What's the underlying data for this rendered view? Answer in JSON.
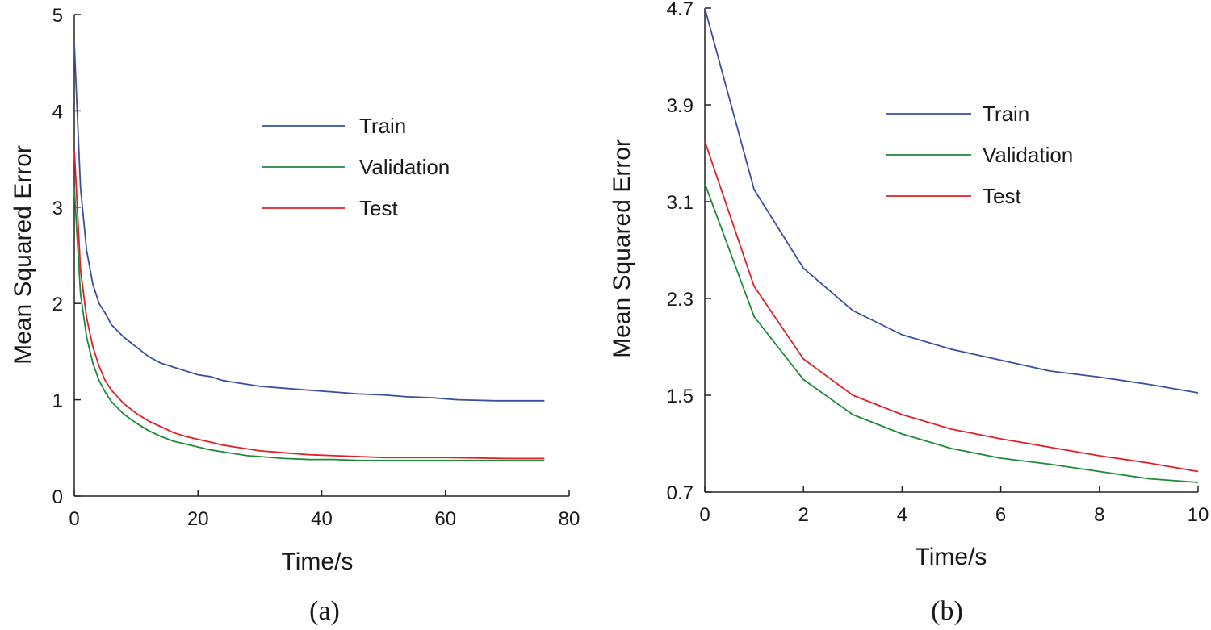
{
  "chart_data": [
    {
      "type": "line",
      "caption": "(a)",
      "xlabel": "Time/s",
      "ylabel": "Mean Squared Error",
      "xlim": [
        0,
        80
      ],
      "ylim": [
        0,
        5
      ],
      "xticks": [
        0,
        20,
        40,
        60,
        80
      ],
      "yticks": [
        0,
        1,
        2,
        3,
        4,
        5
      ],
      "xtick_labels": [
        "0",
        "20",
        "40",
        "60",
        "80"
      ],
      "ytick_labels": [
        "0",
        "1",
        "2",
        "3",
        "4",
        "5"
      ],
      "grid": false,
      "legend_position": "top-right",
      "series": [
        {
          "name": "Train",
          "color": "#3b4fa0",
          "points": [
            [
              0,
              4.7
            ],
            [
              1,
              3.2
            ],
            [
              2,
              2.55
            ],
            [
              3,
              2.2
            ],
            [
              4,
              2.0
            ],
            [
              5,
              1.9
            ],
            [
              6,
              1.78
            ],
            [
              8,
              1.65
            ],
            [
              10,
              1.55
            ],
            [
              12,
              1.45
            ],
            [
              14,
              1.38
            ],
            [
              16,
              1.34
            ],
            [
              18,
              1.3
            ],
            [
              20,
              1.26
            ],
            [
              22,
              1.24
            ],
            [
              24,
              1.2
            ],
            [
              26,
              1.18
            ],
            [
              28,
              1.16
            ],
            [
              30,
              1.14
            ],
            [
              34,
              1.12
            ],
            [
              38,
              1.1
            ],
            [
              42,
              1.08
            ],
            [
              46,
              1.06
            ],
            [
              50,
              1.05
            ],
            [
              54,
              1.03
            ],
            [
              58,
              1.02
            ],
            [
              62,
              1.0
            ],
            [
              68,
              0.99
            ],
            [
              76,
              0.99
            ]
          ]
        },
        {
          "name": "Validation",
          "color": "#1e8a3a",
          "points": [
            [
              0,
              3.2
            ],
            [
              1,
              2.1
            ],
            [
              2,
              1.65
            ],
            [
              3,
              1.38
            ],
            [
              4,
              1.2
            ],
            [
              5,
              1.08
            ],
            [
              6,
              0.98
            ],
            [
              8,
              0.85
            ],
            [
              10,
              0.76
            ],
            [
              12,
              0.68
            ],
            [
              14,
              0.62
            ],
            [
              16,
              0.57
            ],
            [
              18,
              0.54
            ],
            [
              20,
              0.51
            ],
            [
              22,
              0.48
            ],
            [
              24,
              0.46
            ],
            [
              26,
              0.44
            ],
            [
              28,
              0.42
            ],
            [
              30,
              0.41
            ],
            [
              34,
              0.39
            ],
            [
              38,
              0.38
            ],
            [
              42,
              0.38
            ],
            [
              46,
              0.37
            ],
            [
              50,
              0.37
            ],
            [
              60,
              0.37
            ],
            [
              70,
              0.37
            ],
            [
              76,
              0.37
            ]
          ]
        },
        {
          "name": "Test",
          "color": "#e31f26",
          "points": [
            [
              0,
              3.6
            ],
            [
              1,
              2.35
            ],
            [
              2,
              1.85
            ],
            [
              3,
              1.55
            ],
            [
              4,
              1.35
            ],
            [
              5,
              1.2
            ],
            [
              6,
              1.1
            ],
            [
              8,
              0.96
            ],
            [
              10,
              0.86
            ],
            [
              12,
              0.78
            ],
            [
              14,
              0.72
            ],
            [
              16,
              0.66
            ],
            [
              18,
              0.62
            ],
            [
              20,
              0.59
            ],
            [
              22,
              0.56
            ],
            [
              24,
              0.53
            ],
            [
              26,
              0.51
            ],
            [
              28,
              0.49
            ],
            [
              30,
              0.47
            ],
            [
              34,
              0.45
            ],
            [
              38,
              0.43
            ],
            [
              42,
              0.42
            ],
            [
              46,
              0.41
            ],
            [
              50,
              0.4
            ],
            [
              60,
              0.4
            ],
            [
              70,
              0.39
            ],
            [
              76,
              0.39
            ]
          ]
        }
      ]
    },
    {
      "type": "line",
      "caption": "(b)",
      "xlabel": "Time/s",
      "ylabel": "Mean Squared Error",
      "xlim": [
        0,
        10
      ],
      "ylim": [
        0.7,
        4.7
      ],
      "xticks": [
        0,
        2,
        4,
        6,
        8,
        10
      ],
      "yticks": [
        0.7,
        1.5,
        2.3,
        3.1,
        3.9,
        4.7
      ],
      "xtick_labels": [
        "0",
        "2",
        "4",
        "6",
        "8",
        "10"
      ],
      "ytick_labels": [
        "0.7",
        "1.5",
        "2.3",
        "3.1",
        "3.9",
        "4.7"
      ],
      "grid": false,
      "legend_position": "top-right",
      "series": [
        {
          "name": "Train",
          "color": "#3b4fa0",
          "points": [
            [
              0,
              4.7
            ],
            [
              1,
              3.2
            ],
            [
              2,
              2.55
            ],
            [
              3,
              2.2
            ],
            [
              4,
              2.0
            ],
            [
              5,
              1.88
            ],
            [
              6,
              1.79
            ],
            [
              7,
              1.7
            ],
            [
              8,
              1.65
            ],
            [
              9,
              1.59
            ],
            [
              10,
              1.52
            ]
          ]
        },
        {
          "name": "Validation",
          "color": "#1e8a3a",
          "points": [
            [
              0,
              3.25
            ],
            [
              1,
              2.15
            ],
            [
              2,
              1.63
            ],
            [
              3,
              1.34
            ],
            [
              4,
              1.18
            ],
            [
              5,
              1.06
            ],
            [
              6,
              0.98
            ],
            [
              7,
              0.93
            ],
            [
              8,
              0.87
            ],
            [
              9,
              0.81
            ],
            [
              10,
              0.78
            ]
          ]
        },
        {
          "name": "Test",
          "color": "#e31f26",
          "points": [
            [
              0,
              3.6
            ],
            [
              1,
              2.4
            ],
            [
              2,
              1.8
            ],
            [
              3,
              1.5
            ],
            [
              4,
              1.34
            ],
            [
              5,
              1.22
            ],
            [
              6,
              1.14
            ],
            [
              7,
              1.07
            ],
            [
              8,
              1.0
            ],
            [
              9,
              0.94
            ],
            [
              10,
              0.87
            ]
          ]
        }
      ]
    }
  ]
}
